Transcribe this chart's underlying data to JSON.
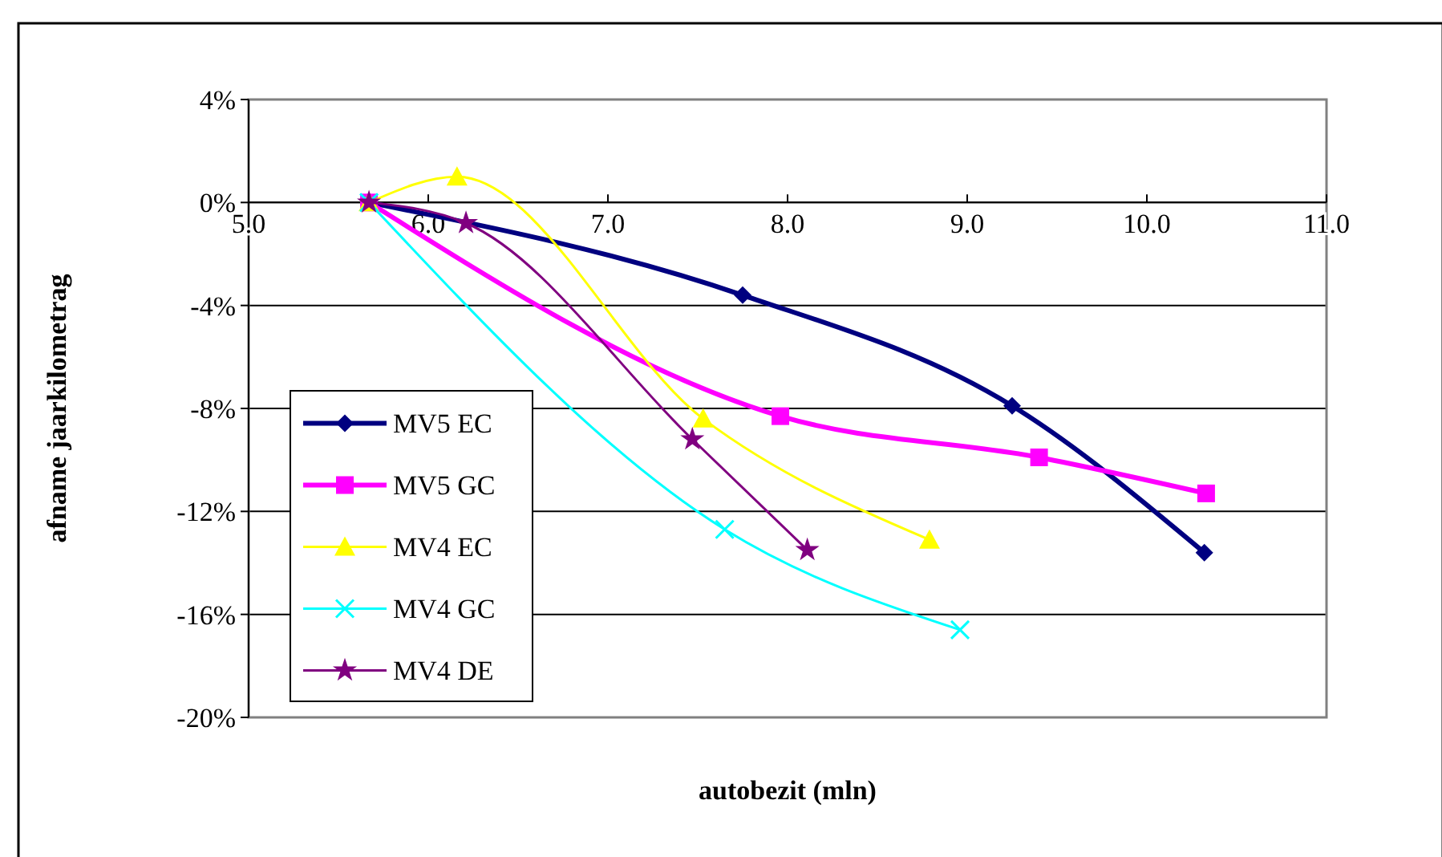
{
  "chart_data": {
    "type": "line",
    "xlabel": "autobezit (mln)",
    "ylabel": "afname jaarkilometrag",
    "xlim": [
      5,
      11
    ],
    "ylim": [
      -20,
      4
    ],
    "grid": "y",
    "legend": "bottom left",
    "xticks": [
      {
        "value": 5,
        "label": "5.0"
      },
      {
        "value": 6,
        "label": "6.0"
      },
      {
        "value": 7,
        "label": "7.0"
      },
      {
        "value": 8,
        "label": "8.0"
      },
      {
        "value": 9,
        "label": "9.0"
      },
      {
        "value": 10,
        "label": "10.0"
      },
      {
        "value": 11,
        "label": "11.0"
      }
    ],
    "yticks": [
      {
        "value": 4,
        "label": "4%"
      },
      {
        "value": 0,
        "label": "0%"
      },
      {
        "value": -4,
        "label": "-4%"
      },
      {
        "value": -8,
        "label": "-8%"
      },
      {
        "value": -12,
        "label": "-12%"
      },
      {
        "value": -16,
        "label": "-16%"
      },
      {
        "value": -20,
        "label": "-20%"
      }
    ],
    "series": [
      {
        "name": "MV5 EC",
        "color": "#000080",
        "marker": "diamond",
        "x": [
          5.67,
          7.75,
          9.25,
          10.32
        ],
        "values": [
          0,
          -3.6,
          -7.9,
          -13.6
        ]
      },
      {
        "name": "MV5 GC",
        "color": "#ff00ff",
        "marker": "square",
        "x": [
          5.67,
          7.96,
          9.4,
          10.33
        ],
        "values": [
          0,
          -8.3,
          -9.9,
          -11.3
        ]
      },
      {
        "name": "MV4 EC",
        "color": "#ffff00",
        "marker": "triangle",
        "x": [
          5.67,
          6.16,
          7.53,
          8.79
        ],
        "values": [
          0,
          1.0,
          -8.4,
          -13.1
        ]
      },
      {
        "name": "MV4 GC",
        "color": "#00ffff",
        "marker": "cross",
        "x": [
          5.67,
          7.65,
          8.96
        ],
        "values": [
          0,
          -12.7,
          -16.6
        ]
      },
      {
        "name": "MV4 DE",
        "color": "#800080",
        "marker": "star",
        "x": [
          5.67,
          6.21,
          7.47,
          8.11
        ],
        "values": [
          0,
          -0.8,
          -9.2,
          -13.5
        ]
      }
    ]
  }
}
